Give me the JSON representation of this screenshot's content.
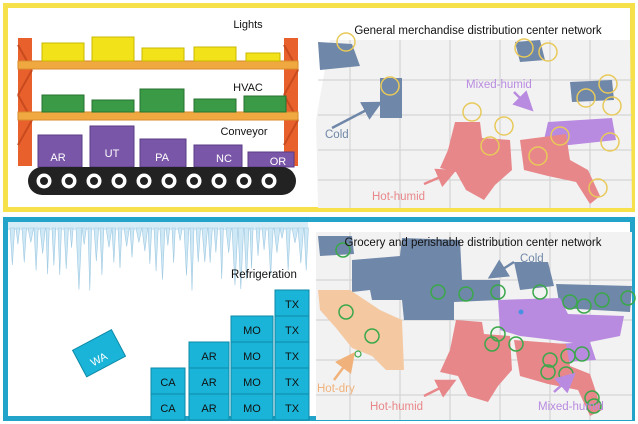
{
  "top": {
    "title": "General merchandise distribution center network",
    "rack_labels": {
      "lights": "Lights",
      "hvac": "HVAC",
      "conveyor": "Conveyor"
    },
    "boxes": [
      "AR",
      "UT",
      "PA",
      "NC",
      "OR"
    ],
    "map_labels": {
      "cold": "Cold",
      "mixed_humid": "Mixed-humid",
      "hot_humid": "Hot-humid"
    },
    "marker_color": "#e8c95a"
  },
  "bottom": {
    "title": "Grocery and perishable distribution center network",
    "refrigeration": "Refrigeration",
    "boxes": {
      "wa": "WA",
      "col_ca": [
        "CA",
        "CA"
      ],
      "col_ar": [
        "AR",
        "AR",
        "AR"
      ],
      "col_mo": [
        "MO",
        "MO",
        "MO",
        "MO"
      ],
      "col_tx": [
        "TX",
        "TX",
        "TX",
        "TX",
        "TX"
      ]
    },
    "map_labels": {
      "cold": "Cold",
      "hot_dry": "Hot-dry",
      "hot_humid": "Hot-humid",
      "mixed_humid": "Mixed-humid"
    },
    "marker_color": "#3aa84a"
  },
  "colors": {
    "top_frame": "#f7e14a",
    "bottom_frame": "#22a3c9",
    "cold": "#6f87a8",
    "hot_humid": "#e8878a",
    "mixed_humid": "#b98be0",
    "hot_dry": "#f4c9a2",
    "rack": "#e8612c",
    "shelf": "#f0a941",
    "yellow_box": "#f2e21a",
    "green_box": "#3a9a45",
    "purple_box": "#7a56a8",
    "cyan_box": "#1ab4d8"
  }
}
